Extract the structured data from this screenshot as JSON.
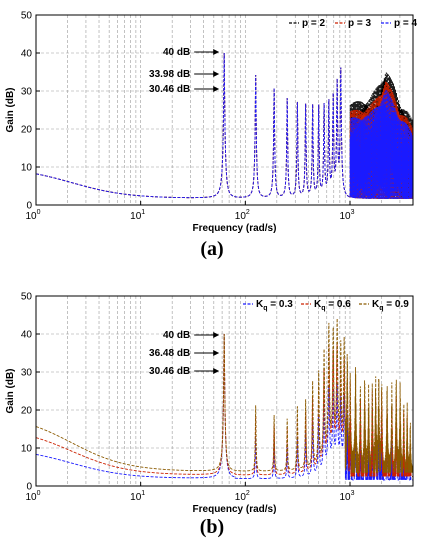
{
  "chart_data": [
    {
      "type": "line",
      "panel_label": "(a)",
      "xlabel": "Frequency  (rad/s)",
      "ylabel": "Gain (dB)",
      "x_scale": "log",
      "xlim": [
        1,
        4000
      ],
      "ylim": [
        0,
        50
      ],
      "x_ticks": [
        {
          "value": 1,
          "base": "10",
          "exp": "0"
        },
        {
          "value": 10,
          "base": "10",
          "exp": "1"
        },
        {
          "value": 100,
          "base": "10",
          "exp": "2"
        },
        {
          "value": 1000,
          "base": "10",
          "exp": "3"
        }
      ],
      "y_ticks": [
        0,
        10,
        20,
        30,
        40,
        50
      ],
      "grid": true,
      "legend_position": "top-right",
      "legend": [
        {
          "label": "p = 2",
          "color": "#000000",
          "style": "dashed"
        },
        {
          "label": "p = 3",
          "color": "#cc2200",
          "style": "dashed"
        },
        {
          "label": "p = 4",
          "color": "#1a1aff",
          "style": "dashed"
        }
      ],
      "base_start_db": 10,
      "base_min_db": 1.6,
      "resonant_peaks": [
        {
          "x": 62.8,
          "y": 40
        },
        {
          "x": 125.6,
          "y": 34
        },
        {
          "x": 188.4,
          "y": 30.5
        },
        {
          "x": 251.2,
          "y": 28
        },
        {
          "x": 314.2,
          "y": 27
        },
        {
          "x": 377,
          "y": 26.5
        },
        {
          "x": 439.8,
          "y": 26
        },
        {
          "x": 502.6,
          "y": 26
        },
        {
          "x": 565.4,
          "y": 26.5
        },
        {
          "x": 628.2,
          "y": 27.5
        },
        {
          "x": 691,
          "y": 29.5
        },
        {
          "x": 753.8,
          "y": 33
        },
        {
          "x": 816.6,
          "y": 36
        }
      ],
      "hf_envelope": [
        {
          "x": 1000,
          "y": 27
        },
        {
          "x": 1500,
          "y": 28
        },
        {
          "x": 2000,
          "y": 33
        },
        {
          "x": 2200,
          "y": 36
        },
        {
          "x": 2600,
          "y": 32
        },
        {
          "x": 3000,
          "y": 27
        },
        {
          "x": 3500,
          "y": 25
        },
        {
          "x": 4000,
          "y": 22
        }
      ],
      "annotations": [
        {
          "text": "40 dB",
          "x": 62.8,
          "y": 40
        },
        {
          "text": "33.98 dB",
          "x": 62.8,
          "y": 33.98
        },
        {
          "text": "30.46 dB",
          "x": 62.8,
          "y": 30.46
        }
      ]
    },
    {
      "type": "line",
      "panel_label": "(b)",
      "xlabel": "Frequency  (rad/s)",
      "ylabel": "Gain (dB)",
      "x_scale": "log",
      "xlim": [
        1,
        4000
      ],
      "ylim": [
        0,
        50
      ],
      "x_ticks": [
        {
          "value": 1,
          "base": "10",
          "exp": "0"
        },
        {
          "value": 10,
          "base": "10",
          "exp": "1"
        },
        {
          "value": 100,
          "base": "10",
          "exp": "2"
        },
        {
          "value": 1000,
          "base": "10",
          "exp": "3"
        }
      ],
      "y_ticks": [
        0,
        10,
        20,
        30,
        40,
        50
      ],
      "grid": true,
      "legend_position": "top-right",
      "legend": [
        {
          "label": "K",
          "sub": "q",
          "value": " = 0.3",
          "color": "#1a1aff",
          "style": "dashed"
        },
        {
          "label": "K",
          "sub": "q",
          "value": " = 0.6",
          "color": "#cc2200",
          "style": "dashed"
        },
        {
          "label": "K",
          "sub": "q",
          "value": " = 0.9",
          "color": "#8b5a00",
          "style": "dashed"
        }
      ],
      "series_base": [
        {
          "start_db": 10,
          "min_db": 1.6
        },
        {
          "start_db": 15.5,
          "min_db": 2.5
        },
        {
          "start_db": 19,
          "min_db": 3.5
        }
      ],
      "resonant_peaks": [
        {
          "x": 62.8,
          "y": 40
        },
        {
          "x": 125.6,
          "y": 20
        },
        {
          "x": 188.4,
          "y": 17
        },
        {
          "x": 251.2,
          "y": 16
        },
        {
          "x": 314.2,
          "y": 20
        },
        {
          "x": 377,
          "y": 22
        },
        {
          "x": 439.8,
          "y": 27
        },
        {
          "x": 502.6,
          "y": 30
        },
        {
          "x": 565.4,
          "y": 36
        },
        {
          "x": 628.2,
          "y": 43
        },
        {
          "x": 691,
          "y": 42
        },
        {
          "x": 753.8,
          "y": 44
        },
        {
          "x": 816.6,
          "y": 38
        },
        {
          "x": 879.4,
          "y": 39
        },
        {
          "x": 942.2,
          "y": 37
        },
        {
          "x": 1005,
          "y": 33
        },
        {
          "x": 1130,
          "y": 32
        },
        {
          "x": 1256,
          "y": 30
        },
        {
          "x": 1382,
          "y": 29
        },
        {
          "x": 1508,
          "y": 27
        },
        {
          "x": 1633,
          "y": 30
        },
        {
          "x": 1759,
          "y": 29
        },
        {
          "x": 1884,
          "y": 30
        },
        {
          "x": 2010,
          "y": 31
        },
        {
          "x": 2261,
          "y": 27
        },
        {
          "x": 2512,
          "y": 29
        },
        {
          "x": 2764,
          "y": 30
        },
        {
          "x": 3015,
          "y": 27
        },
        {
          "x": 3266,
          "y": 25
        },
        {
          "x": 3517,
          "y": 22
        },
        {
          "x": 3768,
          "y": 15
        }
      ],
      "annotations": [
        {
          "text": "40 dB",
          "x": 62.8,
          "y": 40
        },
        {
          "text": "36.48 dB",
          "x": 62.8,
          "y": 36.48
        },
        {
          "text": "30.46 dB",
          "x": 62.8,
          "y": 30.46
        }
      ]
    }
  ]
}
